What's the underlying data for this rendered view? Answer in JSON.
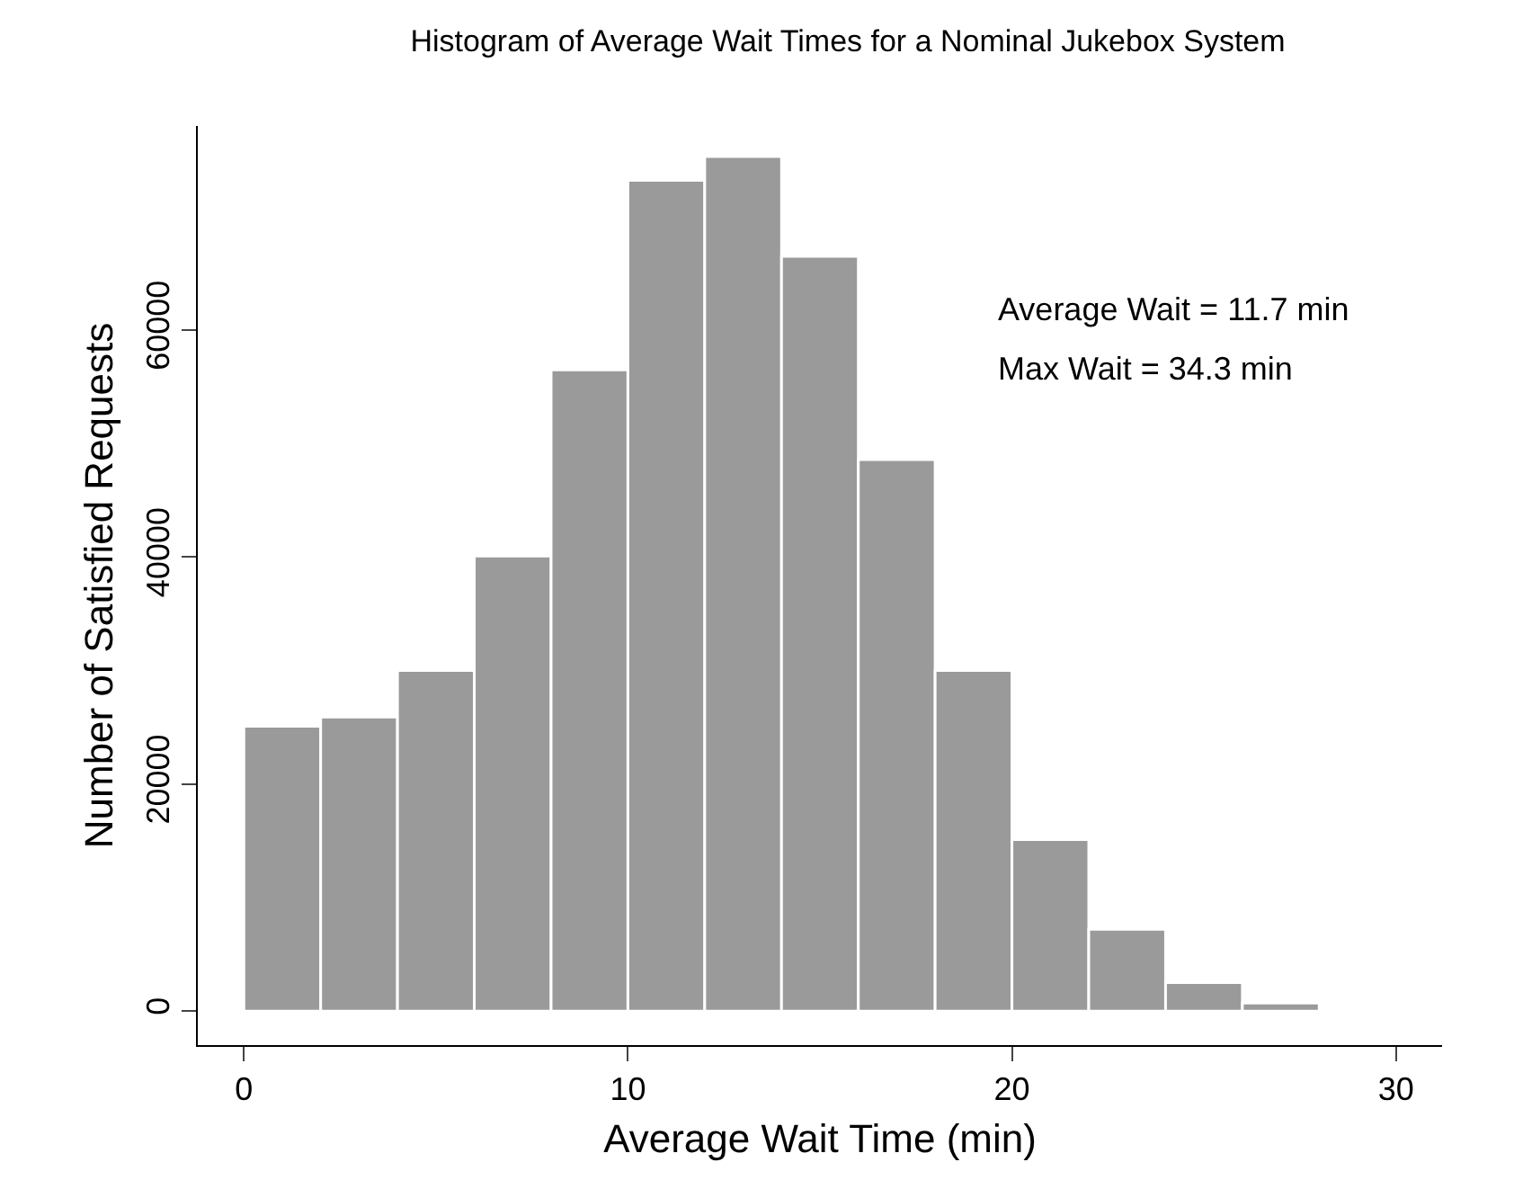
{
  "chart_data": {
    "type": "histogram",
    "title": "Histogram of Average Wait Times for a Nominal Jukebox System",
    "xlabel": "Average Wait Time (min)",
    "ylabel": "Number of Satisfied Requests",
    "bins": [
      0,
      2,
      4,
      6,
      8,
      10,
      12,
      14,
      16,
      18,
      20,
      22,
      24,
      26,
      28
    ],
    "values": [
      25100,
      25900,
      30000,
      40100,
      56500,
      73200,
      75300,
      66500,
      48600,
      30000,
      15100,
      7200,
      2500,
      700
    ],
    "color": "#9a9a9a",
    "xlim": [
      -1.2,
      31.2
    ],
    "ylim": [
      -3000,
      78000
    ],
    "xticks": [
      0,
      10,
      20,
      30
    ],
    "yticks": [
      0,
      20000,
      40000,
      60000
    ],
    "annotations": [
      "Average Wait = 11.7 min",
      "Max Wait = 34.3 min"
    ]
  }
}
